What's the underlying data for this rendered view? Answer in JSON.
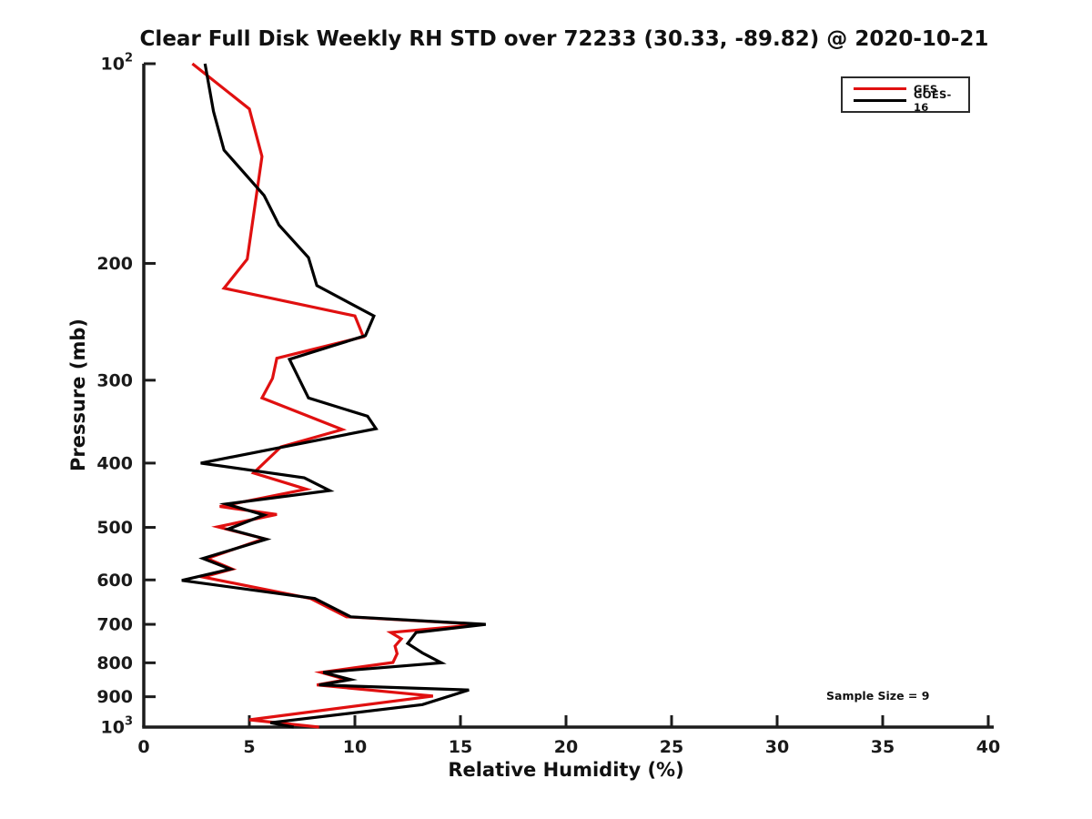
{
  "page": {
    "background": "#ffffff"
  },
  "chart_data": {
    "type": "line",
    "title": "Clear Full Disk Weekly RH STD over 72233 (30.33, -89.82) @ 2020-10-21",
    "xlabel": "Relative Humidity (%)",
    "ylabel": "Pressure (mb)",
    "annotation": "Sample Size = 9",
    "grid": false,
    "legend_position": "top-right",
    "x_axis": {
      "min": 0,
      "max": 40,
      "ticks": [
        0,
        5,
        10,
        15,
        20,
        25,
        30,
        35,
        40
      ]
    },
    "y_axis": {
      "scale": "log",
      "min": 100,
      "max": 1000,
      "direction": "increasing-downward",
      "ticks": [
        {
          "v": 100,
          "base": "10",
          "sup": "2"
        },
        {
          "v": 200,
          "label": "200"
        },
        {
          "v": 300,
          "label": "300"
        },
        {
          "v": 400,
          "label": "400"
        },
        {
          "v": 500,
          "label": "500"
        },
        {
          "v": 600,
          "label": "600"
        },
        {
          "v": 700,
          "label": "700"
        },
        {
          "v": 800,
          "label": "800"
        },
        {
          "v": 900,
          "label": "900"
        },
        {
          "v": 1000,
          "base": "10",
          "sup": "3"
        }
      ]
    },
    "series": [
      {
        "name": "GFS",
        "color": "#e01010",
        "points_format": [
          "pressure_mb",
          "rh_percent"
        ],
        "points": [
          [
            100,
            2.3
          ],
          [
            117,
            5.0
          ],
          [
            138,
            5.6
          ],
          [
            197,
            4.9
          ],
          [
            218,
            3.8
          ],
          [
            240,
            10.0
          ],
          [
            258,
            10.4
          ],
          [
            278,
            6.3
          ],
          [
            298,
            6.1
          ],
          [
            319,
            5.6
          ],
          [
            356,
            9.4
          ],
          [
            378,
            6.5
          ],
          [
            414,
            5.2
          ],
          [
            438,
            7.7
          ],
          [
            465,
            3.6
          ],
          [
            478,
            6.3
          ],
          [
            499,
            3.5
          ],
          [
            520,
            5.7
          ],
          [
            557,
            3.0
          ],
          [
            578,
            4.2
          ],
          [
            594,
            2.8
          ],
          [
            640,
            7.9
          ],
          [
            682,
            9.6
          ],
          [
            700,
            16.0
          ],
          [
            720,
            11.7
          ],
          [
            736,
            12.2
          ],
          [
            755,
            11.9
          ],
          [
            775,
            12.0
          ],
          [
            799,
            11.8
          ],
          [
            827,
            8.4
          ],
          [
            848,
            9.6
          ],
          [
            864,
            8.2
          ],
          [
            898,
            13.7
          ],
          [
            975,
            5.0
          ],
          [
            1000,
            8.3
          ]
        ]
      },
      {
        "name": "GOES-16",
        "color": "#000000",
        "points_format": [
          "pressure_mb",
          "rh_percent"
        ],
        "points": [
          [
            100,
            2.9
          ],
          [
            118,
            3.3
          ],
          [
            135,
            3.8
          ],
          [
            158,
            5.7
          ],
          [
            175,
            6.4
          ],
          [
            196,
            7.8
          ],
          [
            216,
            8.2
          ],
          [
            240,
            10.9
          ],
          [
            257,
            10.5
          ],
          [
            279,
            6.9
          ],
          [
            319,
            7.8
          ],
          [
            340,
            10.6
          ],
          [
            355,
            11.0
          ],
          [
            400,
            2.7
          ],
          [
            421,
            7.6
          ],
          [
            440,
            8.8
          ],
          [
            461,
            3.9
          ],
          [
            479,
            5.7
          ],
          [
            503,
            4.0
          ],
          [
            521,
            5.8
          ],
          [
            557,
            2.8
          ],
          [
            578,
            4.1
          ],
          [
            601,
            1.8
          ],
          [
            640,
            8.1
          ],
          [
            682,
            9.8
          ],
          [
            700,
            16.2
          ],
          [
            720,
            12.9
          ],
          [
            748,
            12.5
          ],
          [
            773,
            13.2
          ],
          [
            800,
            14.1
          ],
          [
            827,
            8.5
          ],
          [
            848,
            9.8
          ],
          [
            864,
            8.3
          ],
          [
            879,
            15.4
          ],
          [
            925,
            13.2
          ],
          [
            985,
            6.0
          ],
          [
            1000,
            7.1
          ]
        ]
      }
    ]
  }
}
